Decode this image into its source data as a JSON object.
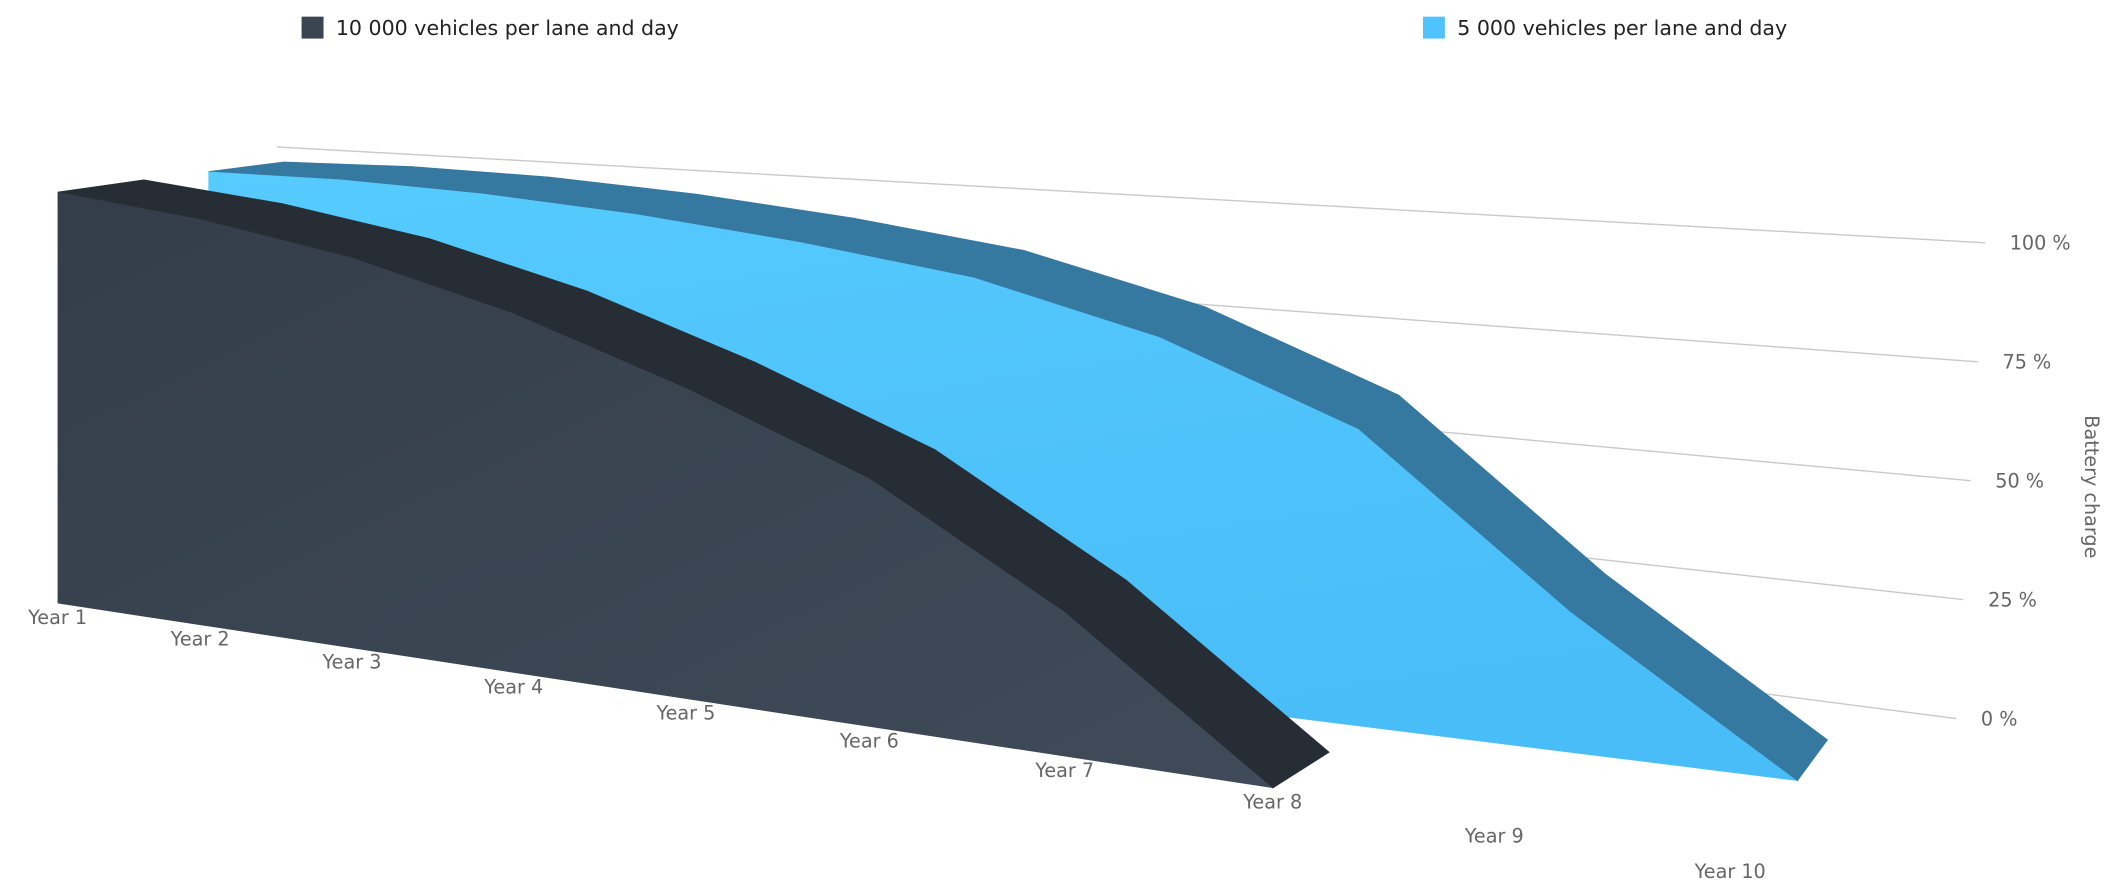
{
  "chart_data": {
    "type": "area3d",
    "categories": [
      "Year 1",
      "Year 2",
      "Year 3",
      "Year 4",
      "Year 5",
      "Year 6",
      "Year 7",
      "Year 8",
      "Year 9",
      "Year 10"
    ],
    "series": [
      {
        "name": "10 000 vehicles per lane and day",
        "color": "#3a4552",
        "values": [
          100,
          95,
          88,
          78,
          65,
          50,
          28,
          0,
          null,
          null
        ]
      },
      {
        "name": "5 000 vehicles per lane and day",
        "color": "#4fc3fb",
        "values": [
          100,
          98,
          95,
          91,
          86,
          80,
          70,
          55,
          25,
          0
        ]
      }
    ],
    "y_label": "Battery charge",
    "ylim": [
      0,
      100
    ],
    "yticks": [
      {
        "value": 0,
        "label": "0 %"
      },
      {
        "value": 25,
        "label": "25 %"
      },
      {
        "value": 50,
        "label": "50 %"
      },
      {
        "value": 75,
        "label": "75 %"
      },
      {
        "value": 100,
        "label": "100 %"
      }
    ],
    "grid": true
  }
}
